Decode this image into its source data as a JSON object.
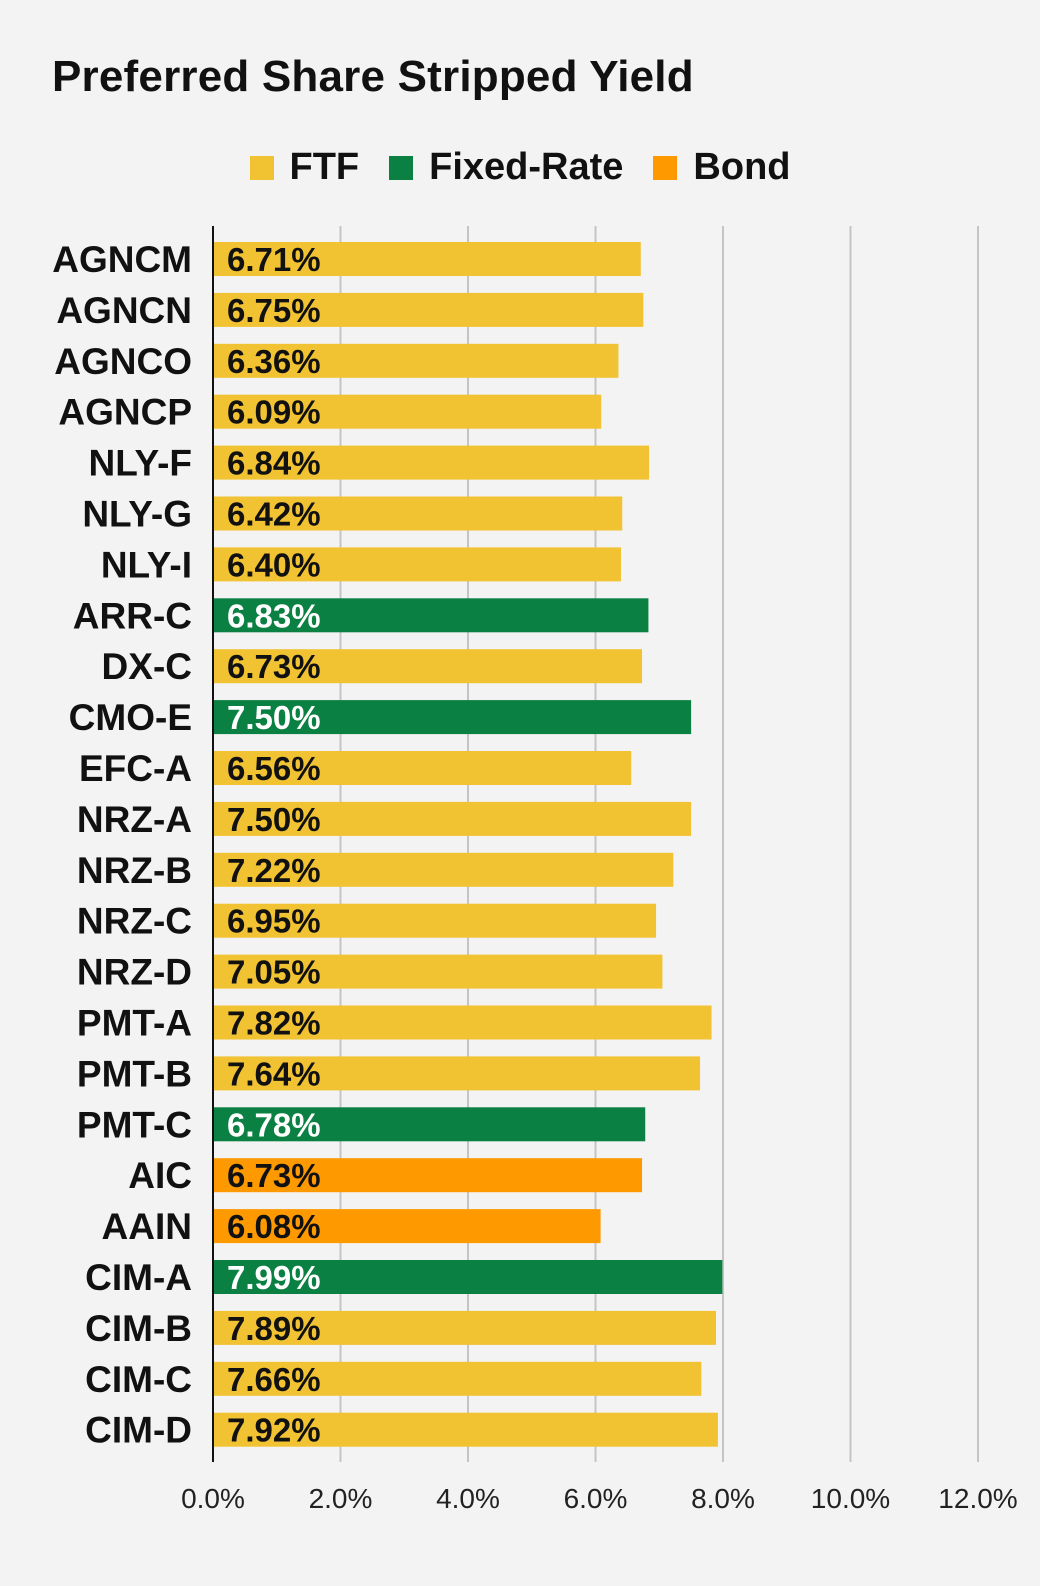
{
  "chart_data": {
    "type": "bar",
    "orientation": "horizontal",
    "title": "Preferred Share Stripped Yield",
    "legend_position": "top",
    "grid": true,
    "xlim": [
      0,
      12
    ],
    "x_ticks": [
      "0.0%",
      "2.0%",
      "4.0%",
      "6.0%",
      "8.0%",
      "10.0%",
      "12.0%"
    ],
    "legend": [
      {
        "name": "FTF",
        "color": "#f1c232"
      },
      {
        "name": "Fixed-Rate",
        "color": "#0b8043"
      },
      {
        "name": "Bond",
        "color": "#ff9900"
      }
    ],
    "categories": [
      "AGNCM",
      "AGNCN",
      "AGNCO",
      "AGNCP",
      "NLY-F",
      "NLY-G",
      "NLY-I",
      "ARR-C",
      "DX-C",
      "CMO-E",
      "EFC-A",
      "NRZ-A",
      "NRZ-B",
      "NRZ-C",
      "NRZ-D",
      "PMT-A",
      "PMT-B",
      "PMT-C",
      "AIC",
      "AAIN",
      "CIM-A",
      "CIM-B",
      "CIM-C",
      "CIM-D"
    ],
    "values": [
      6.71,
      6.75,
      6.36,
      6.09,
      6.84,
      6.42,
      6.4,
      6.83,
      6.73,
      7.5,
      6.56,
      7.5,
      7.22,
      6.95,
      7.05,
      7.82,
      7.64,
      6.78,
      6.73,
      6.08,
      7.99,
      7.89,
      7.66,
      7.92
    ],
    "labels": [
      "6.71%",
      "6.75%",
      "6.36%",
      "6.09%",
      "6.84%",
      "6.42%",
      "6.40%",
      "6.83%",
      "6.73%",
      "7.50%",
      "6.56%",
      "7.50%",
      "7.22%",
      "6.95%",
      "7.05%",
      "7.82%",
      "7.64%",
      "6.78%",
      "6.73%",
      "6.08%",
      "7.99%",
      "7.89%",
      "7.66%",
      "7.92%"
    ],
    "kinds": [
      "FTF",
      "FTF",
      "FTF",
      "FTF",
      "FTF",
      "FTF",
      "FTF",
      "Fixed-Rate",
      "FTF",
      "Fixed-Rate",
      "FTF",
      "FTF",
      "FTF",
      "FTF",
      "FTF",
      "FTF",
      "FTF",
      "Fixed-Rate",
      "Bond",
      "Bond",
      "Fixed-Rate",
      "FTF",
      "FTF",
      "FTF"
    ]
  }
}
